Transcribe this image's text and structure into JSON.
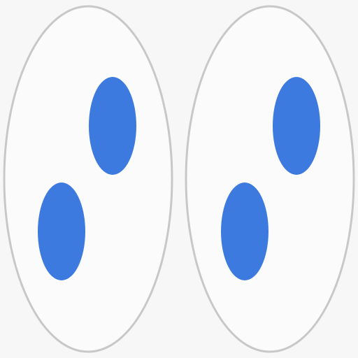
{
  "colors": {
    "background": "#f7f7f7",
    "outline": "#c8c8c8",
    "fill": "#fbfbfb",
    "dot": "#3d7ae0"
  },
  "tiles": [
    {
      "name": "left-tile",
      "dots": 2
    },
    {
      "name": "right-tile",
      "dots": 2
    }
  ]
}
